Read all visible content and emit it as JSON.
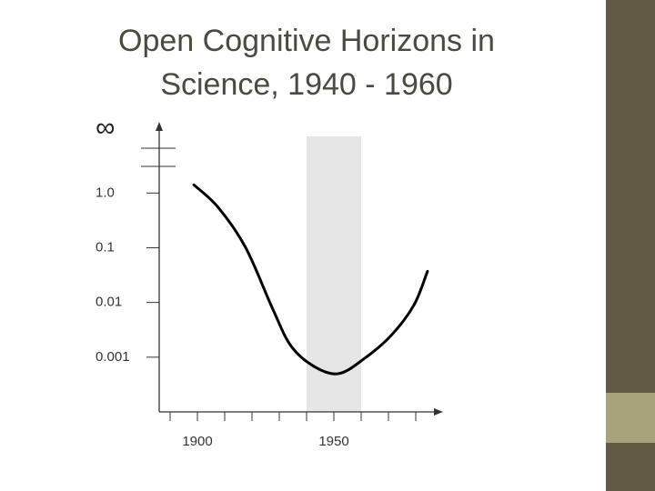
{
  "chart_data": {
    "type": "line",
    "title": "Open Cognitive Horizons in Science, 1940 - 1960",
    "y_top_label": "∞",
    "x": [
      1898.7,
      1907.7,
      1917.7,
      1927.7,
      1934.3,
      1942.7,
      1951.7,
      1961,
      1971,
      1979.3,
      1984.3
    ],
    "values": [
      1.41,
      0.54,
      0.1,
      0.0074,
      0.0016,
      0.00068,
      0.0005,
      0.00093,
      0.0025,
      0.0089,
      0.037
    ],
    "color": "#000000",
    "xlim": [
      1886,
      1990
    ],
    "xticks": [
      1900,
      1950
    ],
    "minor_xticks": [
      1890,
      1910,
      1920,
      1930,
      1940,
      1960,
      1970,
      1980
    ],
    "ylim": [
      0.0001,
      20
    ],
    "log_y": true,
    "yticks": [
      {
        "value": 1,
        "label": "1.0"
      },
      0.1,
      0.01,
      0.001
    ],
    "highlight_xrange": [
      1940,
      1960
    ],
    "highlight_color": "#e6e6e6"
  }
}
